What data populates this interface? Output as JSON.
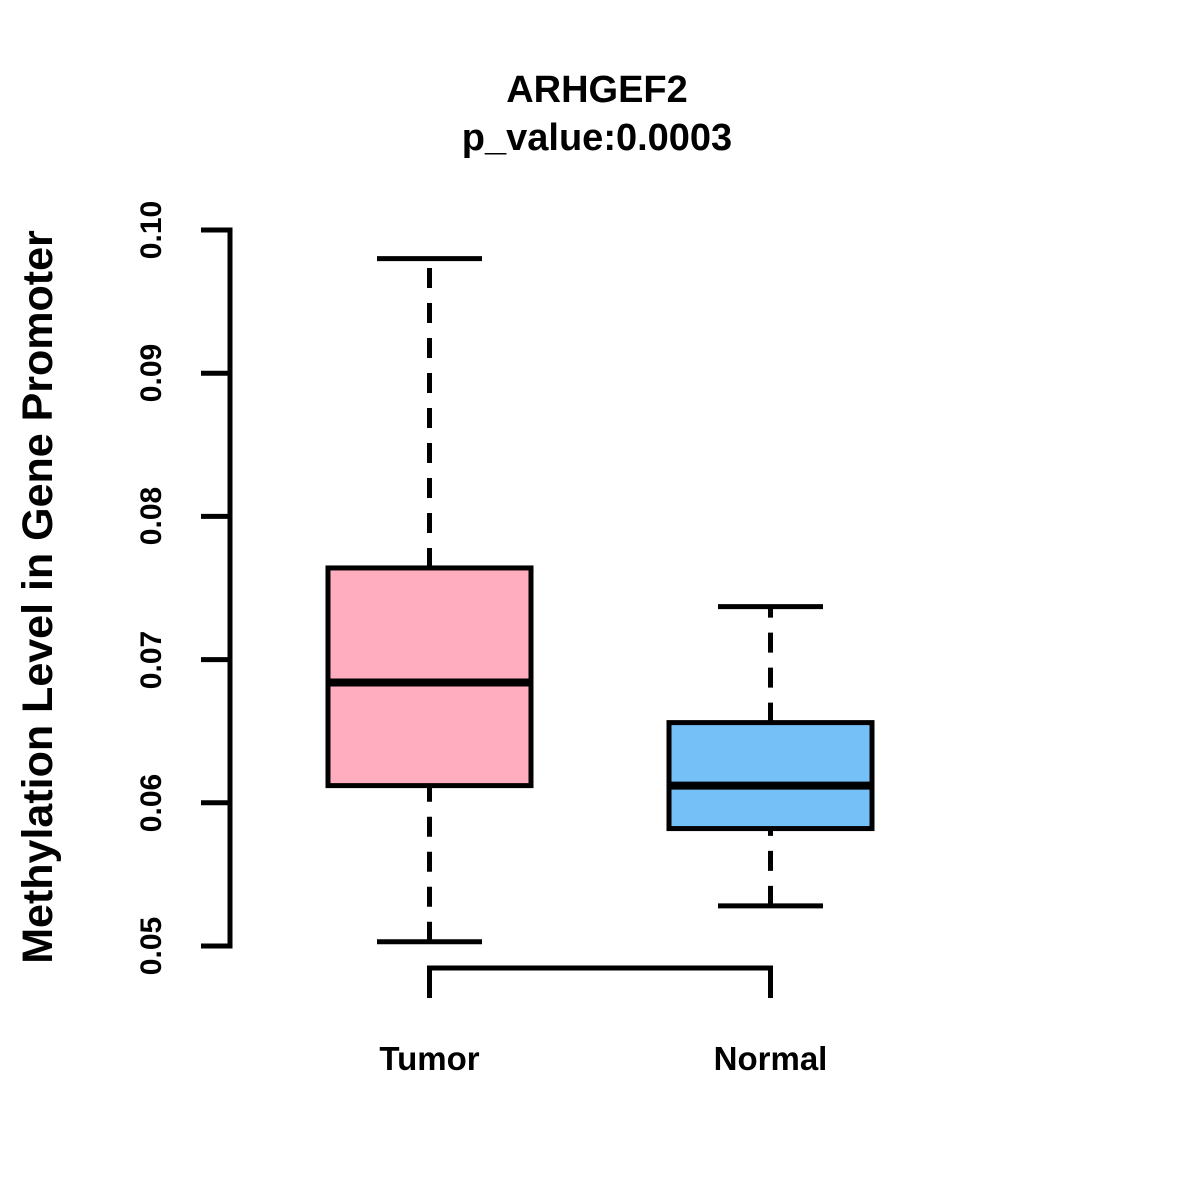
{
  "chart_data": {
    "type": "boxplot",
    "title": "ARHGEF2",
    "subtitle": "p_value:0.0003",
    "ylabel": "Methylation Level in Gene Promoter",
    "xlabel": "",
    "categories": [
      "Tumor",
      "Normal"
    ],
    "series": [
      {
        "name": "Tumor",
        "color": "#FFADBF",
        "whisker_low": 0.0503,
        "q1": 0.0612,
        "median": 0.0684,
        "q3": 0.0764,
        "whisker_high": 0.098
      },
      {
        "name": "Normal",
        "color": "#74C0F7",
        "whisker_low": 0.0528,
        "q1": 0.0582,
        "median": 0.0612,
        "q3": 0.0656,
        "whisker_high": 0.0737
      }
    ],
    "ylim": [
      0.05,
      0.1
    ],
    "yticks": [
      0.05,
      0.06,
      0.07,
      0.08,
      0.09,
      0.1
    ],
    "ytick_labels": [
      "0.05",
      "0.06",
      "0.07",
      "0.08",
      "0.09",
      "0.10"
    ],
    "grid": false,
    "legend": "none",
    "whisker_style": "dashed",
    "line_color": "#000000"
  }
}
